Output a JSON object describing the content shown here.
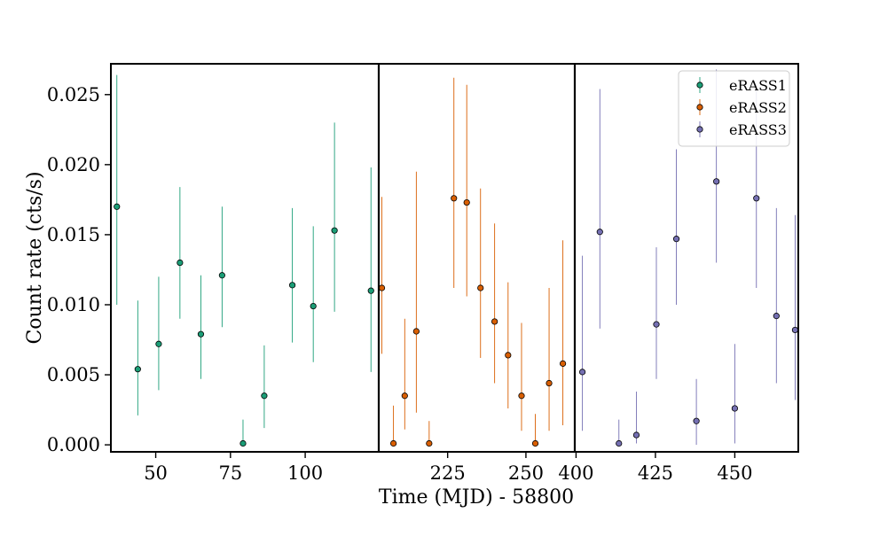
{
  "chart_data": {
    "type": "scatter",
    "title": "",
    "xlabel": "Time (MJD) - 58800",
    "ylabel": "Count rate (cts/s)",
    "ylim": [
      -0.0005,
      0.0272
    ],
    "yticks": [
      0.0,
      0.005,
      0.01,
      0.015,
      0.02,
      0.025
    ],
    "ytick_labels": [
      "0.000",
      "0.005",
      "0.010",
      "0.015",
      "0.020",
      "0.025"
    ],
    "grid": false,
    "legend_position": "top-right",
    "panels": [
      {
        "name": "eRASS1",
        "xlim": [
          35.0,
          124.6
        ],
        "xticks": [
          50,
          75,
          100
        ],
        "xtick_labels": [
          "50",
          "75",
          "100"
        ]
      },
      {
        "name": "eRASS2",
        "xlim": [
          203.0,
          265.6
        ],
        "xticks": [
          225,
          250
        ],
        "xtick_labels": [
          "225",
          "250"
        ]
      },
      {
        "name": "eRASS3",
        "xlim": [
          399.6,
          470.0
        ],
        "xticks": [
          400,
          425,
          450
        ],
        "xtick_labels": [
          "400",
          "425",
          "450"
        ]
      }
    ],
    "series": [
      {
        "name": "eRASS1",
        "color": "#1b9e77",
        "points": [
          {
            "x": 37.0,
            "y": 0.017,
            "err_low": 0.007,
            "err_high": 0.0094
          },
          {
            "x": 44.0,
            "y": 0.0054,
            "err_low": 0.0033,
            "err_high": 0.0049
          },
          {
            "x": 51.0,
            "y": 0.0072,
            "err_low": 0.0033,
            "err_high": 0.0048
          },
          {
            "x": 58.1,
            "y": 0.013,
            "err_low": 0.004,
            "err_high": 0.0054
          },
          {
            "x": 65.1,
            "y": 0.0079,
            "err_low": 0.0032,
            "err_high": 0.0042
          },
          {
            "x": 72.2,
            "y": 0.0121,
            "err_low": 0.0037,
            "err_high": 0.0049
          },
          {
            "x": 79.2,
            "y": 0.0001,
            "err_low": 0.0001,
            "err_high": 0.0017
          },
          {
            "x": 86.3,
            "y": 0.0035,
            "err_low": 0.0023,
            "err_high": 0.0036
          },
          {
            "x": 95.7,
            "y": 0.0114,
            "err_low": 0.0041,
            "err_high": 0.0055
          },
          {
            "x": 102.7,
            "y": 0.0099,
            "err_low": 0.004,
            "err_high": 0.0057
          },
          {
            "x": 109.8,
            "y": 0.0153,
            "err_low": 0.0058,
            "err_high": 0.0077
          },
          {
            "x": 122.0,
            "y": 0.011,
            "err_low": 0.0058,
            "err_high": 0.0088
          }
        ]
      },
      {
        "name": "eRASS2",
        "color": "#d95f02",
        "points": [
          {
            "x": 204.0,
            "y": 0.0112,
            "err_low": 0.0047,
            "err_high": 0.0065
          },
          {
            "x": 207.7,
            "y": 0.0001,
            "err_low": 0.0001,
            "err_high": 0.0027
          },
          {
            "x": 211.3,
            "y": 0.0035,
            "err_low": 0.0024,
            "err_high": 0.0055
          },
          {
            "x": 215.0,
            "y": 0.0081,
            "err_low": 0.0058,
            "err_high": 0.0114
          },
          {
            "x": 219.1,
            "y": 0.0001,
            "err_low": 0.0001,
            "err_high": 0.0016
          },
          {
            "x": 227.0,
            "y": 0.0176,
            "err_low": 0.0064,
            "err_high": 0.0086
          },
          {
            "x": 231.1,
            "y": 0.0173,
            "err_low": 0.0067,
            "err_high": 0.0084
          },
          {
            "x": 235.5,
            "y": 0.0112,
            "err_low": 0.005,
            "err_high": 0.0071
          },
          {
            "x": 240.0,
            "y": 0.0088,
            "err_low": 0.0044,
            "err_high": 0.007
          },
          {
            "x": 244.3,
            "y": 0.0064,
            "err_low": 0.0038,
            "err_high": 0.0052
          },
          {
            "x": 248.6,
            "y": 0.0035,
            "err_low": 0.0025,
            "err_high": 0.0052
          },
          {
            "x": 253.0,
            "y": 0.0001,
            "err_low": 0.0001,
            "err_high": 0.0021
          },
          {
            "x": 257.4,
            "y": 0.0044,
            "err_low": 0.0034,
            "err_high": 0.0068
          },
          {
            "x": 261.8,
            "y": 0.0058,
            "err_low": 0.0044,
            "err_high": 0.0088
          }
        ]
      },
      {
        "name": "eRASS3",
        "color": "#7570b3",
        "points": [
          {
            "x": 402.0,
            "y": 0.0052,
            "err_low": 0.0042,
            "err_high": 0.0083
          },
          {
            "x": 407.5,
            "y": 0.0152,
            "err_low": 0.0069,
            "err_high": 0.0102
          },
          {
            "x": 413.5,
            "y": 0.0001,
            "err_low": 0.0001,
            "err_high": 0.0017
          },
          {
            "x": 419.0,
            "y": 0.0007,
            "err_low": 0.0006,
            "err_high": 0.0031
          },
          {
            "x": 425.3,
            "y": 0.0086,
            "err_low": 0.0039,
            "err_high": 0.0055
          },
          {
            "x": 431.6,
            "y": 0.0147,
            "err_low": 0.0047,
            "err_high": 0.0064
          },
          {
            "x": 437.9,
            "y": 0.0017,
            "err_low": 0.0017,
            "err_high": 0.003
          },
          {
            "x": 444.2,
            "y": 0.0188,
            "err_low": 0.0058,
            "err_high": 0.008
          },
          {
            "x": 450.0,
            "y": 0.0026,
            "err_low": 0.0025,
            "err_high": 0.0046
          },
          {
            "x": 456.8,
            "y": 0.0176,
            "err_low": 0.0064,
            "err_high": 0.008
          },
          {
            "x": 463.1,
            "y": 0.0092,
            "err_low": 0.0048,
            "err_high": 0.0077
          },
          {
            "x": 469.0,
            "y": 0.0082,
            "err_low": 0.005,
            "err_high": 0.0082
          }
        ]
      }
    ]
  }
}
